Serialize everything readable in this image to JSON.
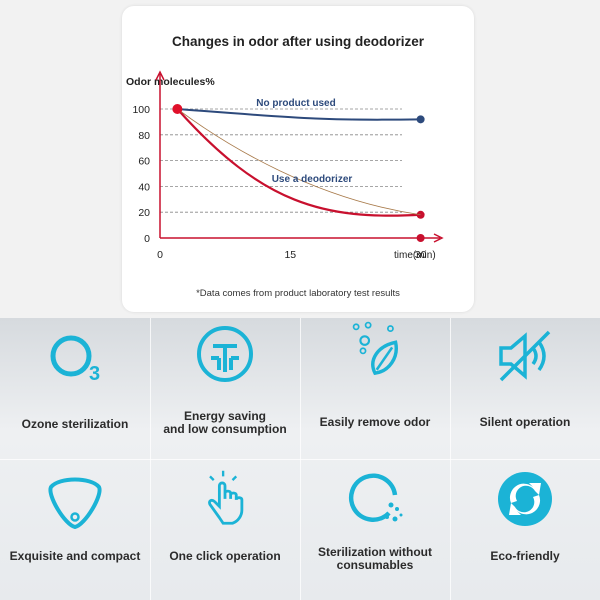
{
  "chart_data": {
    "type": "line",
    "title": "Changes in odor after using deodorizer",
    "ylabel": "Odor molecules%",
    "xlabel": "time(min)",
    "x_ticks": [
      "0",
      "15",
      "30"
    ],
    "y_ticks": [
      "0",
      "20",
      "40",
      "60",
      "80",
      "100"
    ],
    "xlim": [
      0,
      32
    ],
    "ylim": [
      0,
      100
    ],
    "series": [
      {
        "name": "No product used",
        "color": "#2d4a7c",
        "x": [
          2,
          30
        ],
        "y": [
          100,
          92
        ]
      },
      {
        "name": "Use a deodorizer",
        "color": "#c8102e",
        "x": [
          2,
          30
        ],
        "y": [
          100,
          18
        ]
      }
    ],
    "footnote": "*Data comes from product laboratory test results"
  },
  "colors": {
    "accent": "#1bb3d6",
    "axis": "#c8102e"
  },
  "features": [
    {
      "label": "Ozone sterilization",
      "icon": "ozone-icon"
    },
    {
      "label": "Energy saving\nand low consumption",
      "icon": "energy-saving-icon"
    },
    {
      "label": "Easily remove odor",
      "icon": "leaf-bubbles-icon"
    },
    {
      "label": "Silent operation",
      "icon": "mute-speaker-icon"
    },
    {
      "label": "Exquisite and compact",
      "icon": "compact-device-icon"
    },
    {
      "label": "One click operation",
      "icon": "tap-hand-icon"
    },
    {
      "label": "Sterilization without\nconsumables",
      "icon": "circle-dots-icon"
    },
    {
      "label": "Eco-friendly",
      "icon": "recycle-icon"
    }
  ]
}
